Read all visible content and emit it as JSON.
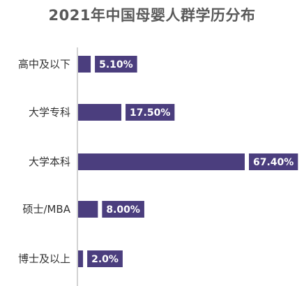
{
  "chart_data": {
    "type": "bar",
    "orientation": "horizontal",
    "title": "2021年中国母婴人群学历分布",
    "categories": [
      "高中及以下",
      "大学专科",
      "大学本科",
      "硕士/MBA",
      "博士及以上"
    ],
    "values": [
      5.1,
      17.5,
      67.4,
      8.0,
      2.0
    ],
    "value_labels": [
      "5.10%",
      "17.50%",
      "67.40%",
      "8.00%",
      "2.0%"
    ],
    "unit": "%",
    "xlim": [
      0,
      67.4
    ],
    "grid": false,
    "legend": "none",
    "colors": {
      "bar": "#4b3e7e",
      "label_box": "#4b3e7e",
      "label_text": "#ffffff",
      "axis": "#a6a6a6",
      "title": "#595959",
      "category_text": "#333333"
    }
  }
}
